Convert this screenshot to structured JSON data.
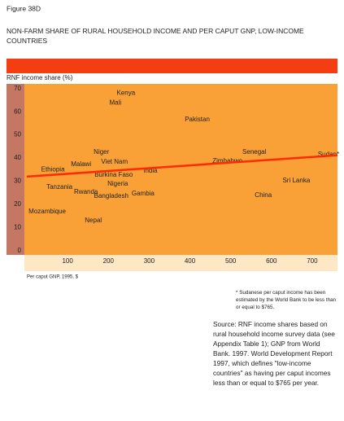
{
  "figure_label": "Figure 38D",
  "chart_data": {
    "type": "scatter",
    "title": "NON-FARM SHARE OF RURAL HOUSEHOLD INCOME AND PER CAPUT GNP, LOW-INCOME COUNTRIES",
    "y_label": "RNF income share (%)",
    "x_label": "Per caput GNP, 1995, $",
    "categories": [
      "Kenya",
      "Mali",
      "Pakistan",
      "Niger",
      "Viet Nam",
      "Malawi",
      "Ethiopia",
      "Senegal",
      "Zimbabwe",
      "Sudan*",
      "Burkina Faso",
      "India",
      "Nigeria",
      "Tanzania",
      "Rwanda",
      "Bangladesh",
      "Gambia",
      "Sri Lanka",
      "China",
      "Mozambique",
      "Nepal"
    ],
    "x": [
      243,
      217,
      418,
      183,
      215,
      133,
      64,
      558,
      492,
      740,
      213,
      303,
      223,
      80,
      145,
      207,
      285,
      661,
      580,
      50,
      163
    ],
    "values": [
      68,
      63.8,
      56.6,
      42.6,
      38.3,
      37.3,
      35,
      42.6,
      38.7,
      41.5,
      32.7,
      34.5,
      28.8,
      27.4,
      25.3,
      23.6,
      24.6,
      30.2,
      23.9,
      16.9,
      13
    ],
    "trend": {
      "x": [
        0,
        765
      ],
      "values": [
        32,
        41.2
      ],
      "color": "#ff2a00"
    },
    "xlim": [
      -6,
      762
    ],
    "ylim": [
      -1.8,
      72
    ],
    "xticks": [
      100,
      200,
      300,
      400,
      500,
      600,
      700
    ],
    "yticks": [
      0,
      10,
      20,
      30,
      40,
      50,
      60,
      70
    ]
  },
  "footnote": "* Sudanese per caput income has been estimated by the World Bank to be less than or equal to $765.",
  "source": "Source: RNF income shares based on rural household income survey data (see Appendix Table 1); GNP from World Bank. 1997. World Development Report 1997, which defines \"low-income countries\" as having per caput incomes less than or equal to $765 per year."
}
